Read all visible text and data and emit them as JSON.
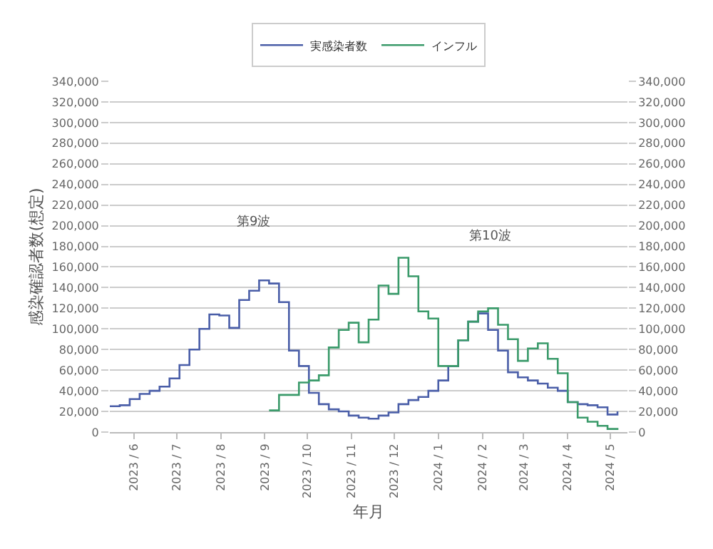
{
  "chart_data": {
    "type": "step",
    "xlabel": "年月",
    "ylabel": "感染確認者数(想定)",
    "x": [
      "2023-05-15",
      "2023-05-22",
      "2023-05-29",
      "2023-06-05",
      "2023-06-12",
      "2023-06-19",
      "2023-06-26",
      "2023-07-03",
      "2023-07-10",
      "2023-07-17",
      "2023-07-24",
      "2023-07-31",
      "2023-08-07",
      "2023-08-14",
      "2023-08-21",
      "2023-08-28",
      "2023-09-04",
      "2023-09-11",
      "2023-09-18",
      "2023-09-25",
      "2023-10-02",
      "2023-10-09",
      "2023-10-16",
      "2023-10-23",
      "2023-10-30",
      "2023-11-06",
      "2023-11-13",
      "2023-11-20",
      "2023-11-27",
      "2023-12-04",
      "2023-12-11",
      "2023-12-18",
      "2023-12-25",
      "2024-01-01",
      "2024-01-08",
      "2024-01-15",
      "2024-01-22",
      "2024-01-29",
      "2024-02-05",
      "2024-02-12",
      "2024-02-19",
      "2024-02-26",
      "2024-03-04",
      "2024-03-11",
      "2024-03-18",
      "2024-03-25",
      "2024-04-01",
      "2024-04-08",
      "2024-04-15",
      "2024-04-22",
      "2024-04-29",
      "2024-05-06"
    ],
    "series": [
      {
        "name": "実感染者数",
        "color": "#4a5ea8",
        "values": [
          25000,
          26000,
          32000,
          37000,
          40000,
          44000,
          52000,
          65000,
          80000,
          100000,
          114000,
          113000,
          101000,
          128000,
          137000,
          147000,
          144000,
          126000,
          79000,
          64000,
          38000,
          27000,
          22000,
          20000,
          16000,
          14000,
          13000,
          16000,
          19000,
          27000,
          31000,
          34000,
          40000,
          50000,
          64000,
          89000,
          107000,
          115000,
          99000,
          79000,
          58000,
          53000,
          50000,
          47000,
          43000,
          40000,
          29000,
          27000,
          26000,
          24000,
          17000,
          20000
        ]
      },
      {
        "name": "インフル",
        "color": "#3a9a6a",
        "values": [
          null,
          null,
          null,
          null,
          null,
          null,
          null,
          null,
          null,
          null,
          null,
          null,
          null,
          null,
          null,
          null,
          21000,
          36000,
          36000,
          48000,
          50000,
          55000,
          82000,
          99000,
          106000,
          87000,
          109000,
          142000,
          134000,
          169000,
          151000,
          117000,
          110000,
          64000,
          64000,
          89000,
          107000,
          117000,
          120000,
          104000,
          90000,
          69000,
          81000,
          86000,
          71000,
          57000,
          29000,
          14000,
          10000,
          6000,
          3000,
          2000
        ]
      }
    ],
    "xlim": [
      "2023-05-15",
      "2024-05-13"
    ],
    "xticks": [
      {
        "value": "2023-06-01",
        "label": "2023 / 6"
      },
      {
        "value": "2023-07-01",
        "label": "2023 / 7"
      },
      {
        "value": "2023-08-01",
        "label": "2023 / 8"
      },
      {
        "value": "2023-09-01",
        "label": "2023 / 9"
      },
      {
        "value": "2023-10-01",
        "label": "2023 / 10"
      },
      {
        "value": "2023-11-01",
        "label": "2023 / 11"
      },
      {
        "value": "2023-12-01",
        "label": "2023 / 12"
      },
      {
        "value": "2024-01-01",
        "label": "2024 / 1"
      },
      {
        "value": "2024-02-01",
        "label": "2024 / 2"
      },
      {
        "value": "2024-03-01",
        "label": "2024 / 3"
      },
      {
        "value": "2024-04-01",
        "label": "2024 / 4"
      },
      {
        "value": "2024-05-01",
        "label": "2024 / 5"
      }
    ],
    "ylim": [
      0,
      340000
    ],
    "yticks": [
      {
        "value": 0,
        "label": "0"
      },
      {
        "value": 20000,
        "label": "20,000"
      },
      {
        "value": 40000,
        "label": "40,000"
      },
      {
        "value": 60000,
        "label": "60,000"
      },
      {
        "value": 80000,
        "label": "80,000"
      },
      {
        "value": 100000,
        "label": "100,000"
      },
      {
        "value": 120000,
        "label": "120,000"
      },
      {
        "value": 140000,
        "label": "140,000"
      },
      {
        "value": 160000,
        "label": "160,000"
      },
      {
        "value": 180000,
        "label": "180,000"
      },
      {
        "value": 200000,
        "label": "200,000"
      },
      {
        "value": 220000,
        "label": "220,000"
      },
      {
        "value": 240000,
        "label": "240,000"
      },
      {
        "value": 260000,
        "label": "260,000"
      },
      {
        "value": 280000,
        "label": "280,000"
      },
      {
        "value": 300000,
        "label": "300,000"
      },
      {
        "value": 320000,
        "label": "320,000"
      },
      {
        "value": 340000,
        "label": "340,000"
      }
    ],
    "y2lim": [
      0,
      340000
    ],
    "y2ticks": [
      {
        "value": 0,
        "label": "0"
      },
      {
        "value": 20000,
        "label": "20,000"
      },
      {
        "value": 40000,
        "label": "40,000"
      },
      {
        "value": 60000,
        "label": "60,000"
      },
      {
        "value": 80000,
        "label": "80,000"
      },
      {
        "value": 100000,
        "label": "100,000"
      },
      {
        "value": 120000,
        "label": "120,000"
      },
      {
        "value": 140000,
        "label": "140,000"
      },
      {
        "value": 160000,
        "label": "160,000"
      },
      {
        "value": 180000,
        "label": "180,000"
      },
      {
        "value": 200000,
        "label": "200,000"
      },
      {
        "value": 220000,
        "label": "220,000"
      },
      {
        "value": 240000,
        "label": "240,000"
      },
      {
        "value": 260000,
        "label": "260,000"
      },
      {
        "value": 280000,
        "label": "280,000"
      },
      {
        "value": 300000,
        "label": "300,000"
      },
      {
        "value": 320000,
        "label": "320,000"
      },
      {
        "value": 340000,
        "label": "340,000"
      }
    ],
    "annotations": [
      "第9波",
      "第10波"
    ],
    "grid": "y",
    "legend": "top",
    "marker": "none",
    "line_style": "solid"
  }
}
